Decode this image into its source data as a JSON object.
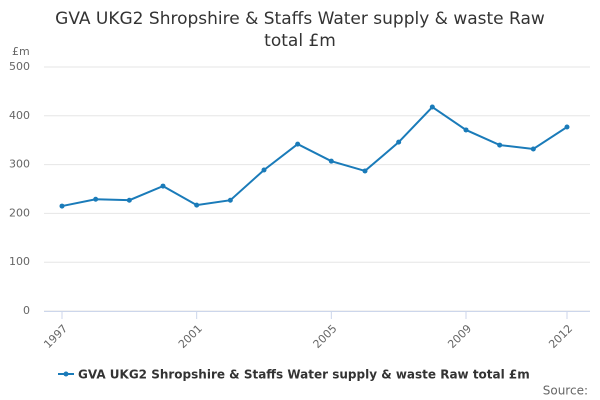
{
  "chart_data": {
    "type": "line",
    "title": "GVA UKG2 Shropshire & Staffs Water supply & waste Raw total £m",
    "y_axis_label": "£m",
    "x": [
      1997,
      1998,
      1999,
      2000,
      2001,
      2002,
      2003,
      2004,
      2005,
      2006,
      2007,
      2008,
      2009,
      2010,
      2011,
      2012
    ],
    "series": [
      {
        "name": "GVA UKG2 Shropshire & Staffs Water supply & waste Raw total £m",
        "color": "#1a7bb9",
        "values": [
          215,
          229,
          227,
          256,
          217,
          227,
          289,
          342,
          307,
          287,
          346,
          418,
          371,
          340,
          332,
          377
        ]
      }
    ],
    "xlim": [
      1997,
      2012
    ],
    "xticks": [
      1997,
      2001,
      2005,
      2009,
      2012
    ],
    "ylim": [
      0,
      500
    ],
    "yticks": [
      0,
      100,
      200,
      300,
      400,
      500
    ],
    "grid": true,
    "legend": "bottom",
    "source": "Source:"
  }
}
